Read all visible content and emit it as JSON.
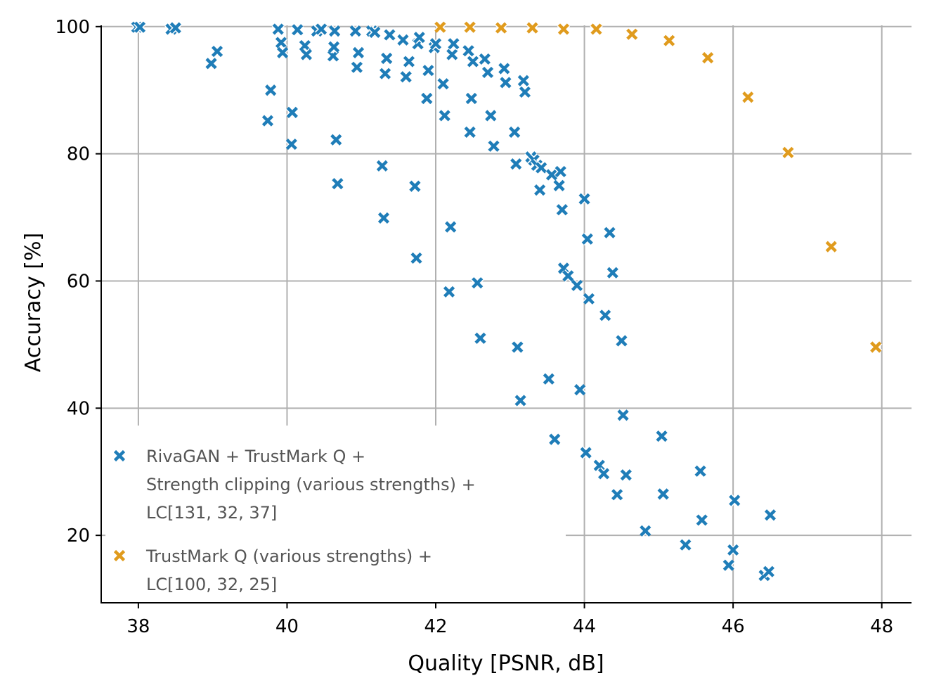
{
  "chart_data": {
    "type": "scatter",
    "xlabel": "Quality [PSNR, dB]",
    "ylabel": "Accuracy [%]",
    "xlim": [
      37.5,
      48.4
    ],
    "ylim": [
      9.4,
      100.2
    ],
    "xticks": [
      38,
      40,
      42,
      44,
      46,
      48
    ],
    "yticks": [
      20,
      40,
      60,
      80,
      100
    ],
    "grid": true,
    "legend_position": "lower-left",
    "series": [
      {
        "name": "RivaGAN + TrustMark Q + Strength clipping (various strengths) + LC[131, 32, 37]",
        "legend_lines": [
          "RivaGAN + TrustMark Q +",
          "Strength clipping (various strengths) +",
          "LC[131, 32, 37]"
        ],
        "color": "#1f7db8",
        "marker": "x",
        "points": [
          [
            37.98,
            99.9
          ],
          [
            38.02,
            99.9
          ],
          [
            38.44,
            99.6
          ],
          [
            38.5,
            99.8
          ],
          [
            38.98,
            94.2
          ],
          [
            39.06,
            96.1
          ],
          [
            39.74,
            85.2
          ],
          [
            39.78,
            90.0
          ],
          [
            39.88,
            99.6
          ],
          [
            39.92,
            97.5
          ],
          [
            39.94,
            95.9
          ],
          [
            40.06,
            81.5
          ],
          [
            40.07,
            86.5
          ],
          [
            40.14,
            99.5
          ],
          [
            40.24,
            97.0
          ],
          [
            40.26,
            95.6
          ],
          [
            40.4,
            99.3
          ],
          [
            40.46,
            99.6
          ],
          [
            40.62,
            95.4
          ],
          [
            40.63,
            96.8
          ],
          [
            40.64,
            99.3
          ],
          [
            40.66,
            82.2
          ],
          [
            40.68,
            75.3
          ],
          [
            40.92,
            99.3
          ],
          [
            40.94,
            93.6
          ],
          [
            40.96,
            95.9
          ],
          [
            41.14,
            99.3
          ],
          [
            41.18,
            99.1
          ],
          [
            41.28,
            78.1
          ],
          [
            41.3,
            69.9
          ],
          [
            41.32,
            92.6
          ],
          [
            41.34,
            95.0
          ],
          [
            41.38,
            98.7
          ],
          [
            41.56,
            97.9
          ],
          [
            41.6,
            92.1
          ],
          [
            41.64,
            94.5
          ],
          [
            41.72,
            74.9
          ],
          [
            41.74,
            63.6
          ],
          [
            41.76,
            97.3
          ],
          [
            41.78,
            98.3
          ],
          [
            41.88,
            88.7
          ],
          [
            41.9,
            93.1
          ],
          [
            41.98,
            96.7
          ],
          [
            42.0,
            97.3
          ],
          [
            42.1,
            91.0
          ],
          [
            42.12,
            86.0
          ],
          [
            42.18,
            58.3
          ],
          [
            42.2,
            68.5
          ],
          [
            42.22,
            95.6
          ],
          [
            42.24,
            97.3
          ],
          [
            42.44,
            96.2
          ],
          [
            42.46,
            83.4
          ],
          [
            42.48,
            88.7
          ],
          [
            42.5,
            94.5
          ],
          [
            42.56,
            59.7
          ],
          [
            42.6,
            51.0
          ],
          [
            42.66,
            94.9
          ],
          [
            42.7,
            92.8
          ],
          [
            42.74,
            86.0
          ],
          [
            42.78,
            81.2
          ],
          [
            42.92,
            93.4
          ],
          [
            42.94,
            91.2
          ],
          [
            43.06,
            83.4
          ],
          [
            43.08,
            78.4
          ],
          [
            43.1,
            49.6
          ],
          [
            43.14,
            41.2
          ],
          [
            43.18,
            91.5
          ],
          [
            43.2,
            89.7
          ],
          [
            43.28,
            79.5
          ],
          [
            43.32,
            79.0
          ],
          [
            43.36,
            78.2
          ],
          [
            43.4,
            74.3
          ],
          [
            43.42,
            77.8
          ],
          [
            43.52,
            44.6
          ],
          [
            43.56,
            76.7
          ],
          [
            43.6,
            35.1
          ],
          [
            43.66,
            75.0
          ],
          [
            43.68,
            77.2
          ],
          [
            43.7,
            71.2
          ],
          [
            43.72,
            62.0
          ],
          [
            43.78,
            60.8
          ],
          [
            43.9,
            59.3
          ],
          [
            43.94,
            42.9
          ],
          [
            44.0,
            72.9
          ],
          [
            44.02,
            33.0
          ],
          [
            44.04,
            66.6
          ],
          [
            44.06,
            57.2
          ],
          [
            44.2,
            31.0
          ],
          [
            44.26,
            29.7
          ],
          [
            44.28,
            54.6
          ],
          [
            44.34,
            67.6
          ],
          [
            44.38,
            61.3
          ],
          [
            44.44,
            26.4
          ],
          [
            44.5,
            50.6
          ],
          [
            44.52,
            38.9
          ],
          [
            44.56,
            29.5
          ],
          [
            44.82,
            20.7
          ],
          [
            45.04,
            35.6
          ],
          [
            45.06,
            26.5
          ],
          [
            45.36,
            18.5
          ],
          [
            45.56,
            30.1
          ],
          [
            45.58,
            22.4
          ],
          [
            45.94,
            15.3
          ],
          [
            46.0,
            17.7
          ],
          [
            46.02,
            25.5
          ],
          [
            46.42,
            13.7
          ],
          [
            46.48,
            14.3
          ],
          [
            46.5,
            23.2
          ]
        ]
      },
      {
        "name": "TrustMark Q (various strengths) + LC[100, 32, 25]",
        "legend_lines": [
          "TrustMark Q (various strengths) +",
          "LC[100, 32, 25]"
        ],
        "color": "#e09b1d",
        "marker": "x",
        "points": [
          [
            42.06,
            99.9
          ],
          [
            42.46,
            99.9
          ],
          [
            42.88,
            99.8
          ],
          [
            43.3,
            99.8
          ],
          [
            43.72,
            99.6
          ],
          [
            44.16,
            99.6
          ],
          [
            44.64,
            98.8
          ],
          [
            45.14,
            97.8
          ],
          [
            45.66,
            95.1
          ],
          [
            46.2,
            88.9
          ],
          [
            46.74,
            80.2
          ],
          [
            47.32,
            65.4
          ],
          [
            47.92,
            49.6
          ]
        ]
      }
    ]
  }
}
